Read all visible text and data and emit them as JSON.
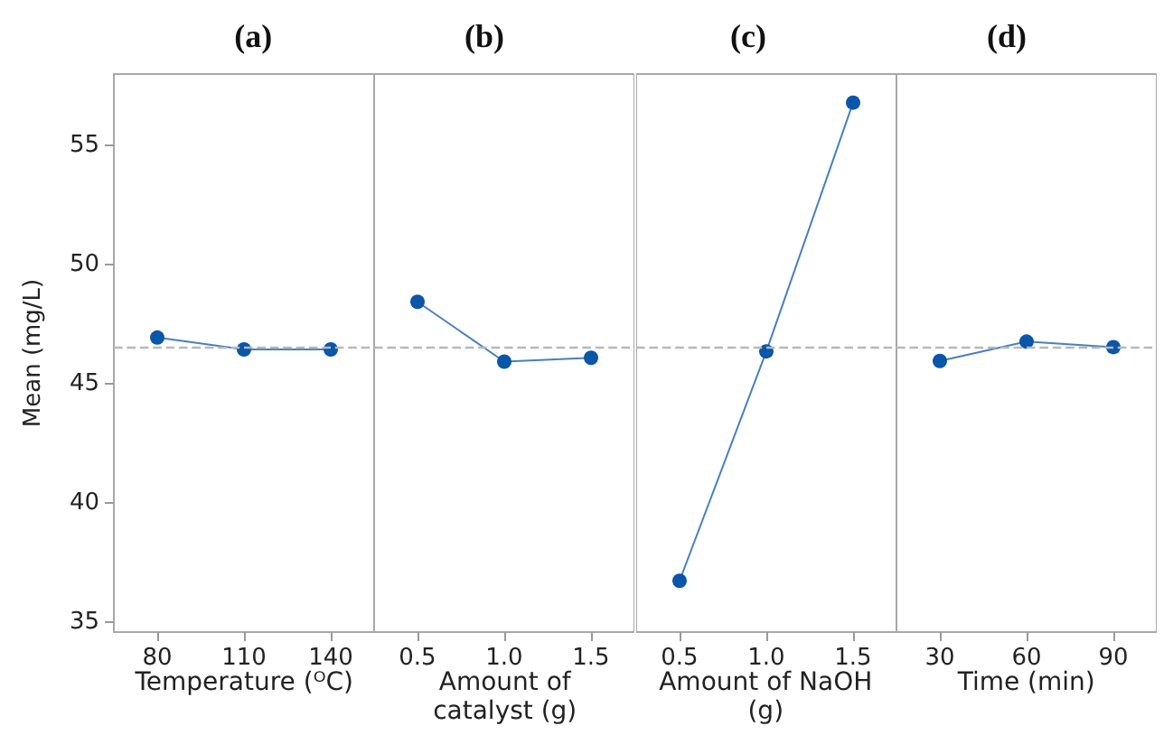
{
  "chart_data": [
    {
      "type": "line",
      "title": "(a)",
      "xlabel": "Temperature (ᴼC)",
      "ylabel": "Mean (mg/L)",
      "categories": [
        "80",
        "110",
        "140"
      ],
      "values": [
        46.95,
        46.45,
        46.45
      ],
      "color": "#0a56a8",
      "marker": "circle",
      "ylim": [
        34.6,
        58
      ],
      "yticks": [
        35,
        40,
        45,
        50,
        55
      ],
      "ref_lines": [
        {
          "axis": "y",
          "value": 46.57,
          "color": "#b8b8b8",
          "line_style": "dashed"
        }
      ]
    },
    {
      "type": "line",
      "title": "(b)",
      "xlabel": "Amount of catalyst (g)",
      "categories": [
        "0.5",
        "1.0",
        "1.5"
      ],
      "values": [
        48.45,
        45.94,
        46.1
      ],
      "color": "#0a56a8",
      "marker": "circle",
      "ylim": [
        34.6,
        58
      ],
      "tick_labels": "x",
      "ref_lines": [
        {
          "axis": "y",
          "value": 46.57,
          "color": "#b8b8b8",
          "line_style": "dashed"
        }
      ]
    },
    {
      "type": "line",
      "title": "(c)",
      "xlabel": "Amount of NaOH (g)",
      "categories": [
        "0.5",
        "1.0",
        "1.5"
      ],
      "values": [
        36.75,
        46.37,
        56.8
      ],
      "color": "#0a56a8",
      "marker": "circle",
      "ylim": [
        34.6,
        58
      ],
      "tick_labels": "x",
      "ref_lines": [
        {
          "axis": "y",
          "value": 46.57,
          "color": "#b8b8b8",
          "line_style": "dashed"
        }
      ]
    },
    {
      "type": "line",
      "title": "(d)",
      "xlabel": "Time (min)",
      "categories": [
        "30",
        "60",
        "90"
      ],
      "values": [
        45.97,
        46.78,
        46.55
      ],
      "color": "#0a56a8",
      "marker": "circle",
      "ylim": [
        34.6,
        58
      ],
      "tick_labels": "x",
      "ref_lines": [
        {
          "axis": "y",
          "value": 46.57,
          "color": "#b8b8b8",
          "line_style": "dashed"
        }
      ]
    }
  ]
}
